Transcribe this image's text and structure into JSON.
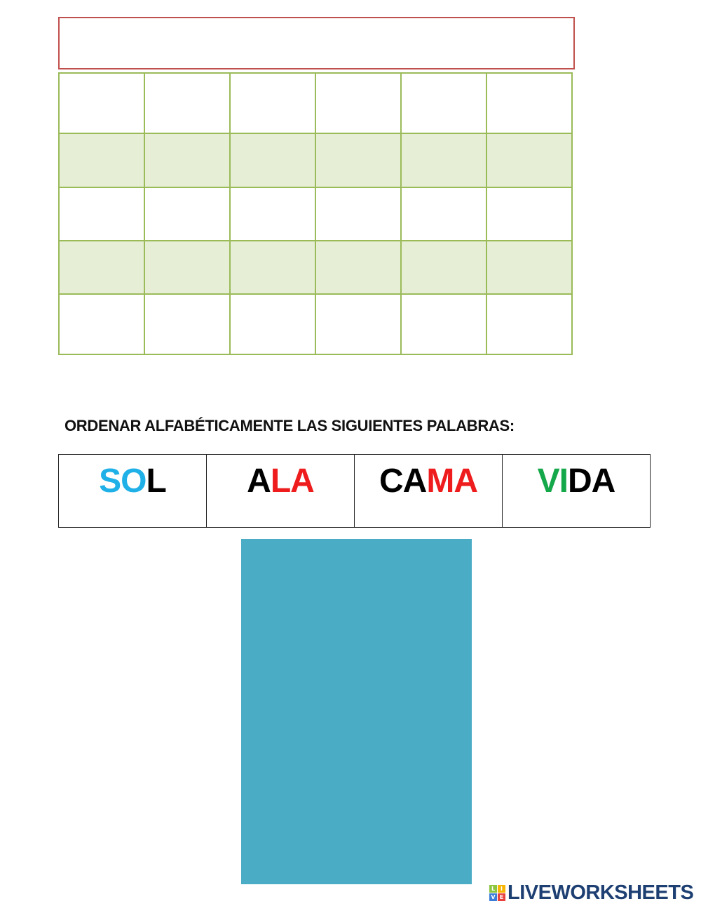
{
  "instruction": "ORDENAR ALFABÉTICAMENTE LAS SIGUIENTES PALABRAS:",
  "words": [
    {
      "parts": [
        {
          "t": "SO",
          "c": "#1fb0e8"
        },
        {
          "t": "L",
          "c": "#000000"
        }
      ]
    },
    {
      "parts": [
        {
          "t": "A",
          "c": "#000000"
        },
        {
          "t": "LA",
          "c": "#ee1c1c"
        }
      ]
    },
    {
      "parts": [
        {
          "t": "CA",
          "c": "#000000"
        },
        {
          "t": "MA",
          "c": "#ee1c1c"
        }
      ]
    },
    {
      "parts": [
        {
          "t": "VI",
          "c": "#15a84a"
        },
        {
          "t": "DA",
          "c": "#000000"
        }
      ]
    }
  ],
  "grid": {
    "rows": 5,
    "cols": 6
  },
  "colors": {
    "grid_border": "#9bbb59",
    "grid_fill": "#e6eed6",
    "title_border": "#c0504d",
    "answer_box": "#4bacc6"
  },
  "logo": {
    "text": "LIVEWORKSHEETS",
    "letters": [
      "L",
      "I",
      "V",
      "E"
    ]
  }
}
